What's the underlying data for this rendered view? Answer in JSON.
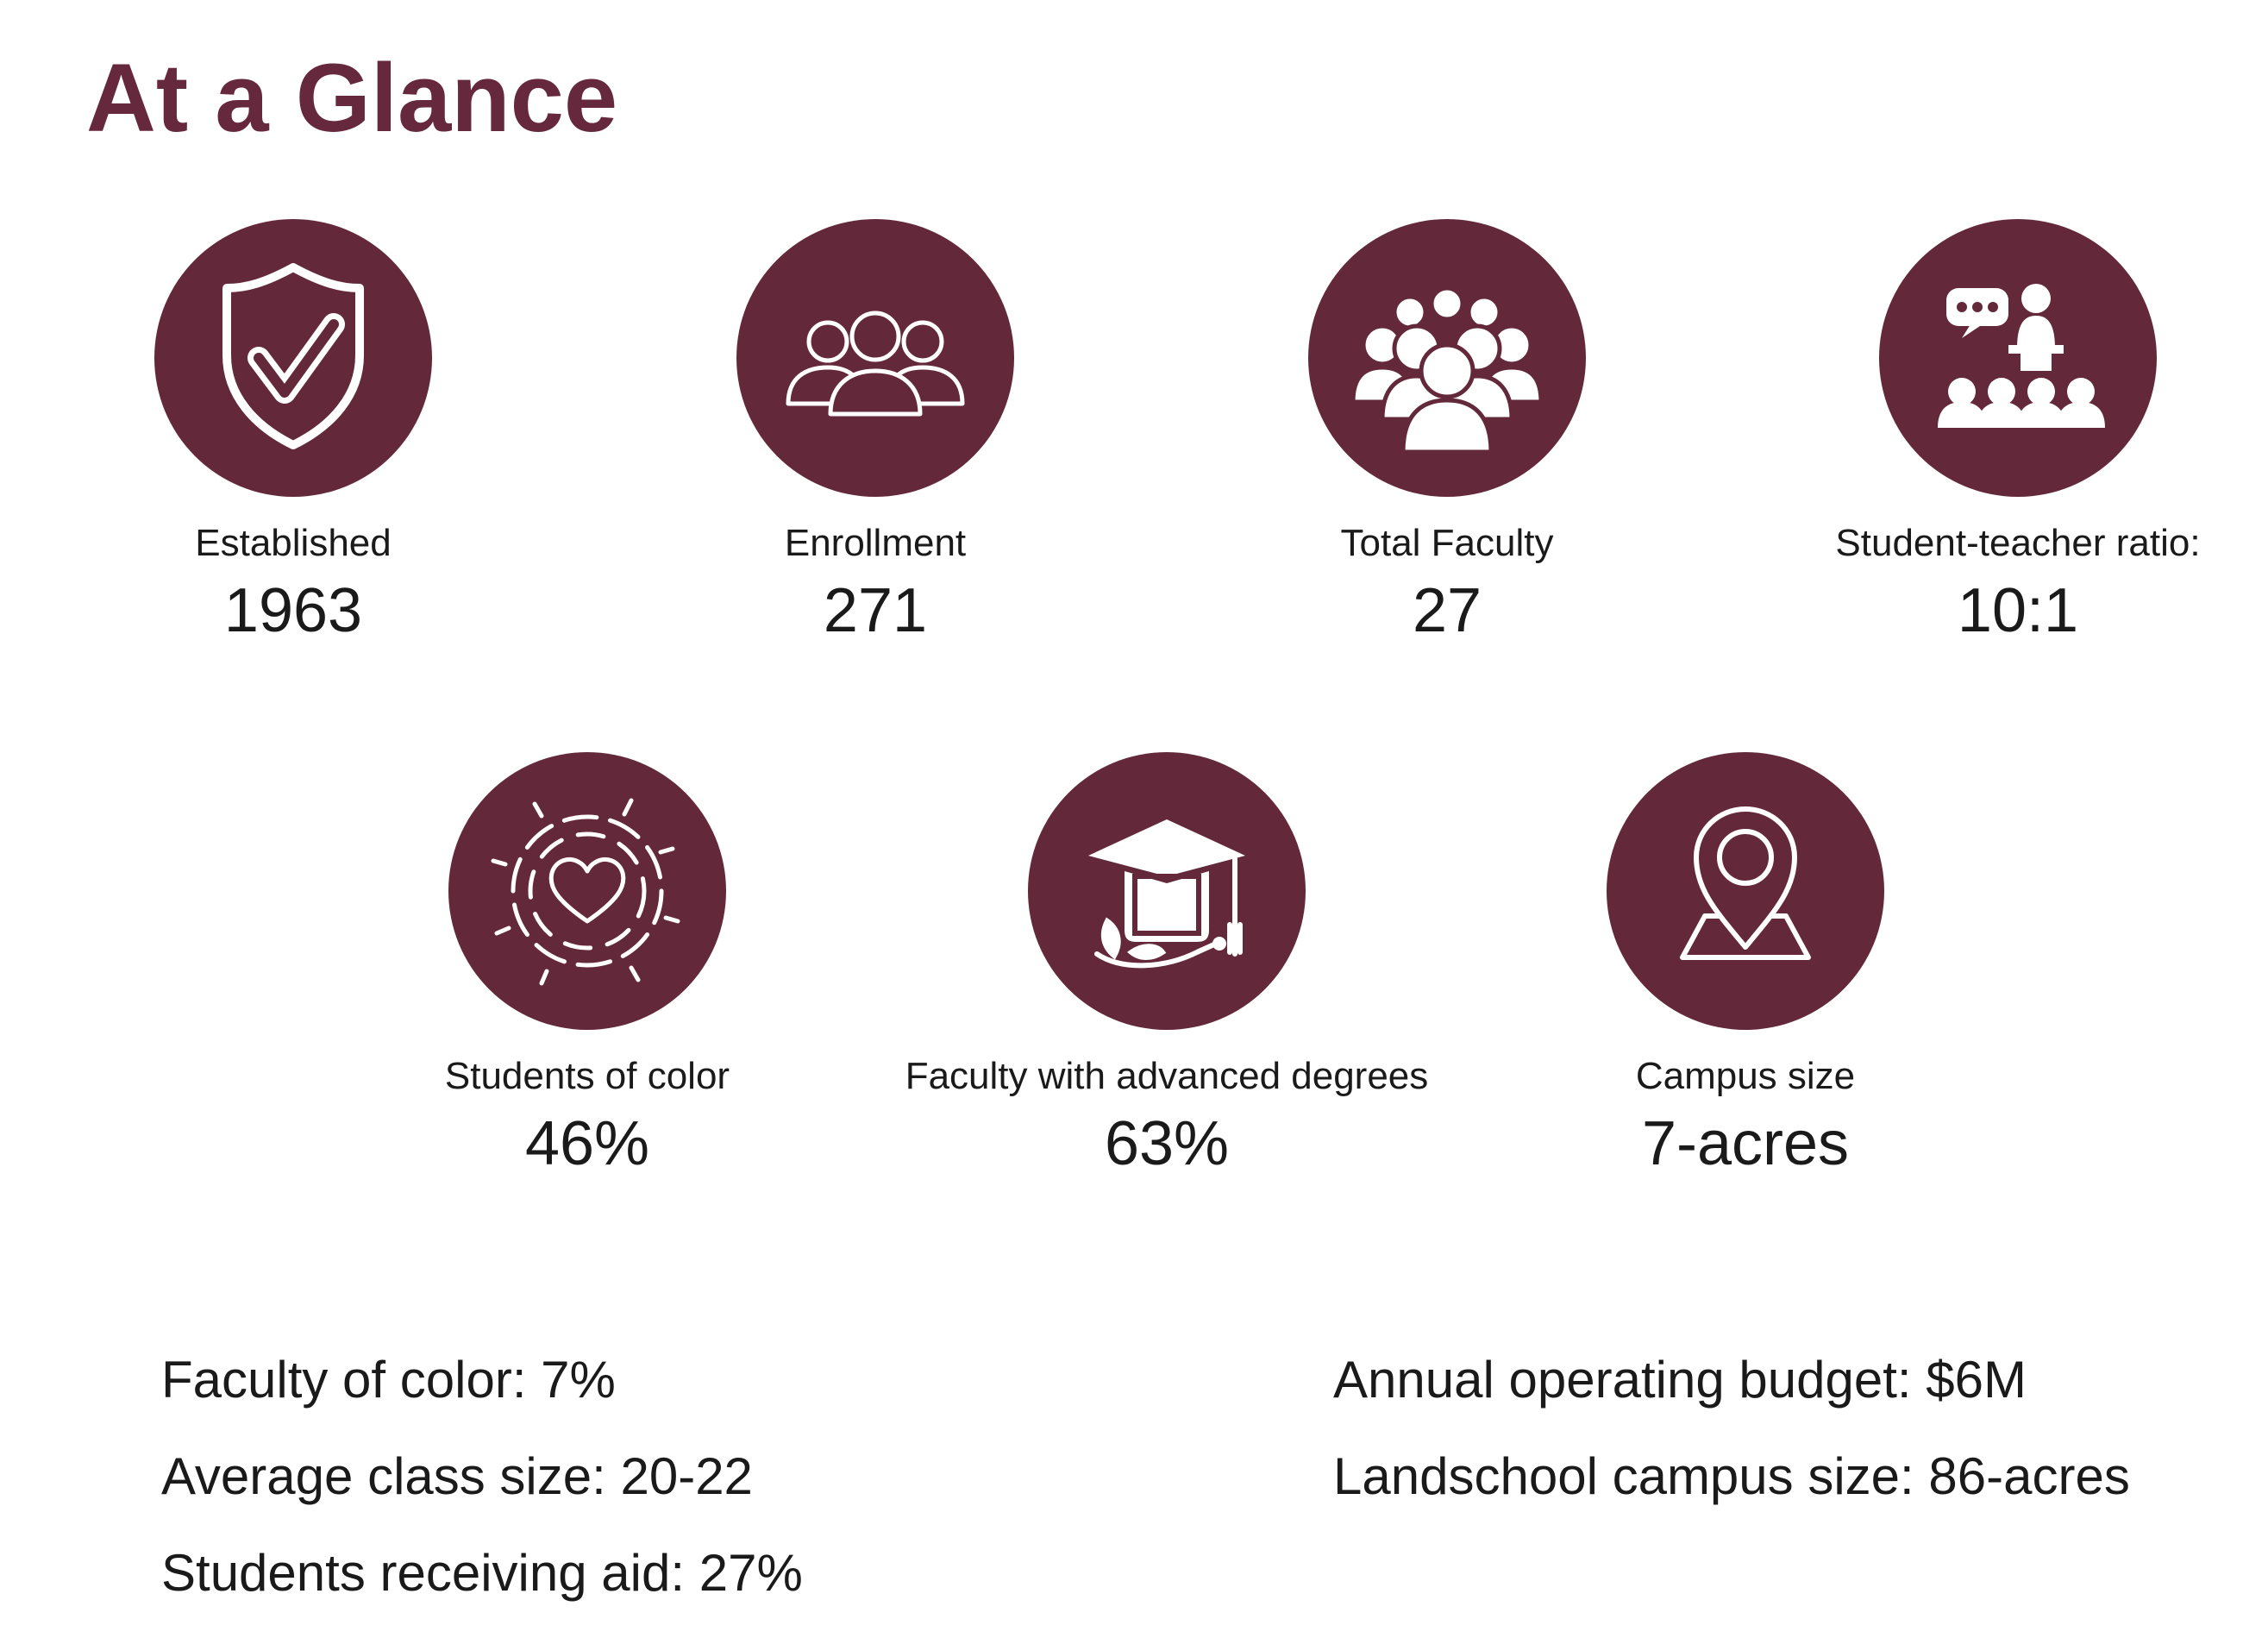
{
  "title": "At a Glance",
  "colors": {
    "accent": "#65283c",
    "icon_fill": "#63293b",
    "icon_line": "#ffffff",
    "text": "#1a1a1a"
  },
  "stats_row1": [
    {
      "icon": "shield-check-icon",
      "label": "Established",
      "value": "1963"
    },
    {
      "icon": "group-outline-icon",
      "label": "Enrollment",
      "value": "271"
    },
    {
      "icon": "crowd-icon",
      "label": "Total Faculty",
      "value": "27"
    },
    {
      "icon": "teacher-presentation-icon",
      "label": "Student-teacher ratio:",
      "value": "10:1"
    }
  ],
  "stats_row2": [
    {
      "icon": "hands-heart-icon",
      "label": "Students of color",
      "value": "46%"
    },
    {
      "icon": "graduation-cap-icon",
      "label": "Faculty with advanced degrees",
      "value": "63%"
    },
    {
      "icon": "map-pin-icon",
      "label": "Campus size",
      "value": "7-acres"
    }
  ],
  "facts_left": [
    "Faculty of color: 7%",
    "Average class size: 20-22",
    "Students receiving aid: 27%"
  ],
  "facts_right": [
    "Annual operating budget: $6M",
    "Landschool campus size: 86-acres"
  ]
}
